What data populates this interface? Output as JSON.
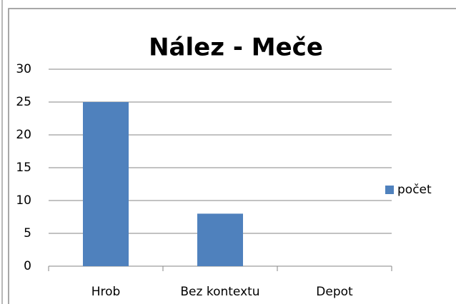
{
  "chart_data": {
    "type": "bar",
    "title": "Nález - Meče",
    "categories": [
      "Hrob",
      "Bez kontextu",
      "Depot"
    ],
    "series": [
      {
        "name": "počet",
        "color": "#4f81bd",
        "values": [
          25,
          8,
          0
        ]
      }
    ],
    "ylim": [
      0,
      30
    ],
    "yticks": [
      0,
      5,
      10,
      15,
      20,
      25,
      30
    ],
    "grid": true,
    "legend": "right"
  }
}
